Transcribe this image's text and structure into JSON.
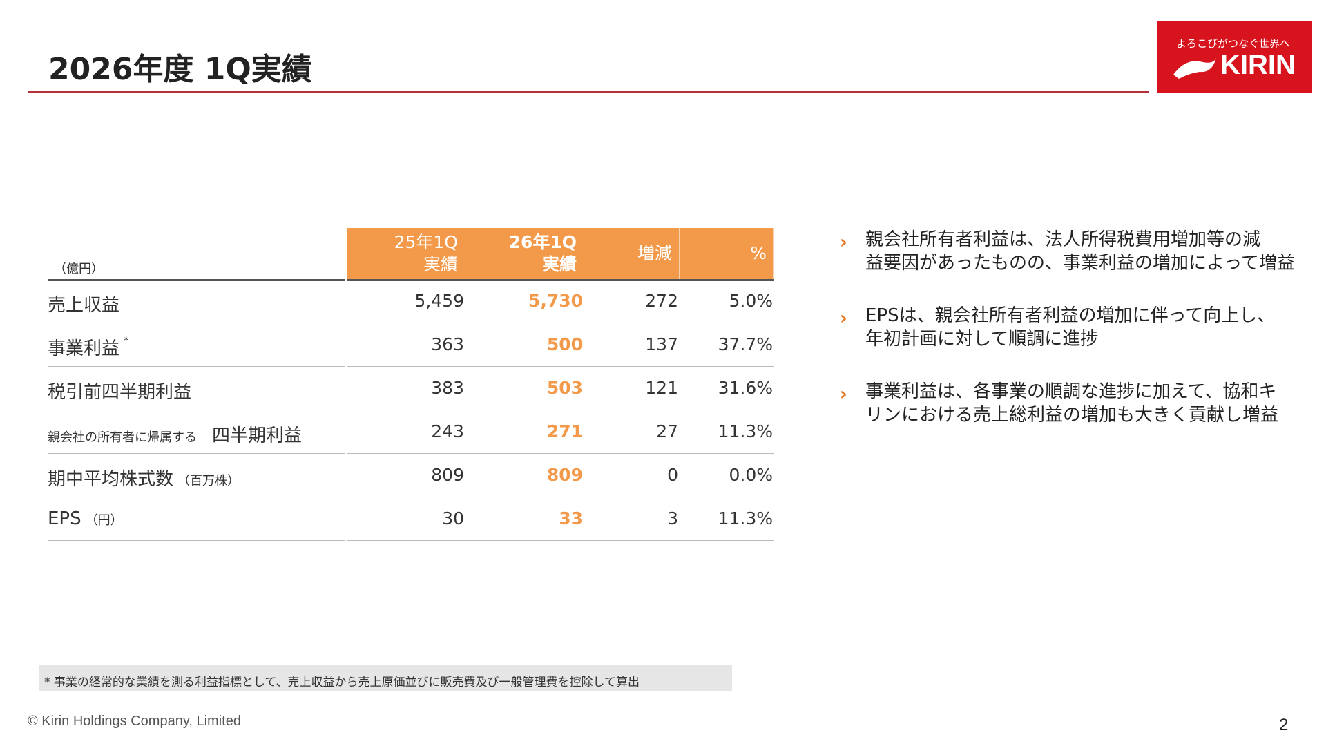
{
  "header": {
    "title": "2026年度 1Q実績"
  },
  "logo": {
    "tagline": "よろこびがつなぐ世界へ",
    "brand": "KIRIN"
  },
  "table": {
    "unit": "（億円）",
    "columns": [
      [
        "25年1Q",
        "実績"
      ],
      [
        "26年1Q",
        "実績"
      ],
      [
        "増減"
      ],
      [
        "%"
      ]
    ],
    "rows": [
      {
        "label": "売上収益",
        "cells": [
          "5,459",
          "5,730",
          "272",
          "5.0%"
        ]
      },
      {
        "label": "事業利益",
        "mark": "*",
        "cells": [
          "363",
          "500",
          "137",
          "37.7%"
        ]
      },
      {
        "label": "税引前四半期利益",
        "cells": [
          "383",
          "503",
          "121",
          "31.6%"
        ]
      },
      {
        "prefix": "親会社の所有者に帰属する",
        "label": "四半期利益",
        "cells": [
          "243",
          "271",
          "27",
          "11.3%"
        ]
      },
      {
        "label": "期中平均株式数",
        "note": "（百万株）",
        "cells": [
          "809",
          "809",
          "0",
          "0.0%"
        ]
      },
      {
        "label": "EPS",
        "note": "（円）",
        "cells": [
          "30",
          "33",
          "3",
          "11.3%"
        ]
      }
    ]
  },
  "bullets": [
    [
      "親会社所有者利益は、法人所得税費用増加等の減",
      "益要因があったものの、事業利益の増加によって増益"
    ],
    [
      "EPSは、親会社所有者利益の増加に伴って向上し、",
      "年初計画に対して順調に進捗"
    ],
    [
      "事業利益は、各事業の順調な進捗に加えて、協和キ",
      "リンにおける売上総利益の増加も大きく貢献し増益"
    ]
  ],
  "footnote": "* 事業の経常的な業績を測る利益指標として、売上収益から売上原価並びに販売費及び一般管理費を控除して算出",
  "copyright": "© Kirin Holdings Company, Limited",
  "page_number": "2"
}
